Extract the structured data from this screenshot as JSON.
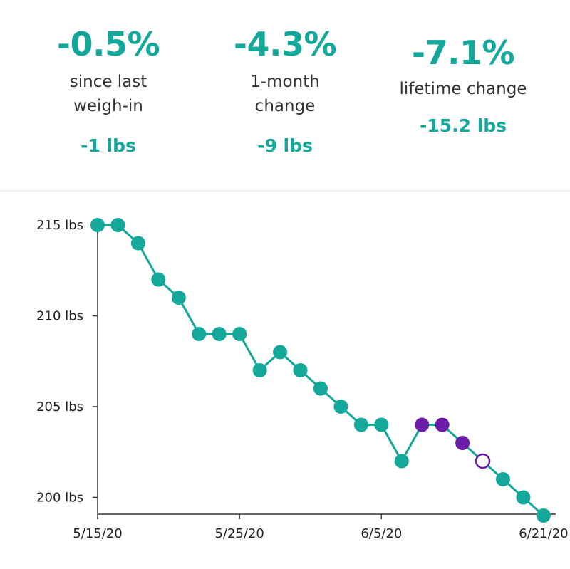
{
  "stats": [
    {
      "value": "-0.5%",
      "label_lines": [
        "since last",
        "weigh-in"
      ],
      "change": "-1 lbs"
    },
    {
      "value": "-4.3%",
      "label_lines": [
        "1-month",
        "change"
      ],
      "change": "-9 lbs"
    },
    {
      "value": "-7.1%",
      "label_lines": [
        "lifetime change"
      ],
      "change": "-15.2 lbs"
    }
  ],
  "colors": {
    "teal": "#14a89a",
    "purple": "#6a1ba8",
    "text": "#222222"
  },
  "chart_data": {
    "type": "line",
    "title": "",
    "xlabel": "",
    "ylabel": "",
    "x_tick_labels": [
      "5/15/20",
      "5/25/20",
      "6/5/20",
      "6/21/20"
    ],
    "y_tick_labels": [
      "215 lbs",
      "210 lbs",
      "205 lbs",
      "200 lbs"
    ],
    "y_ticks": [
      215,
      210,
      205,
      200
    ],
    "ylim": [
      199,
      215
    ],
    "grid": false,
    "series": [
      {
        "values": [
          215,
          215,
          214,
          212,
          211,
          209,
          209,
          209,
          207,
          208,
          207,
          206,
          205,
          204,
          204,
          202,
          204,
          204,
          203,
          202,
          201,
          200,
          199
        ],
        "point_styles": [
          "teal",
          "teal",
          "teal",
          "teal",
          "teal",
          "teal",
          "teal",
          "teal",
          "teal",
          "teal",
          "teal",
          "teal",
          "teal",
          "teal",
          "teal",
          "teal",
          "purple",
          "purple",
          "purple",
          "purple-hollow",
          "teal",
          "teal",
          "teal"
        ]
      }
    ]
  }
}
